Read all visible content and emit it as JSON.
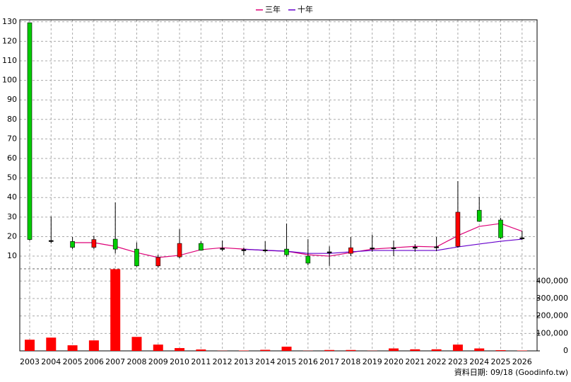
{
  "chart_data": {
    "type": "candlestick",
    "categories": [
      "2003",
      "2004",
      "2005",
      "2006",
      "2007",
      "2008",
      "2009",
      "2010",
      "2011",
      "2012",
      "2013",
      "2014",
      "2015",
      "2016",
      "2017",
      "2018",
      "2019",
      "2020",
      "2021",
      "2022",
      "2023",
      "2024",
      "2025",
      "2026"
    ],
    "open": [
      129.5,
      18,
      17.5,
      14.5,
      18.7,
      13.6,
      5,
      9.6,
      16.5,
      14,
      13.3,
      13.2,
      13.6,
      10,
      12.2,
      11.4,
      14.2,
      14.3,
      14.6,
      14.8,
      15,
      33.5,
      28.5,
      19.4
    ],
    "high": [
      129.5,
      30.3,
      19.8,
      20.5,
      37.5,
      17,
      10.7,
      23.8,
      17.6,
      18,
      14.4,
      17.6,
      26.7,
      18.7,
      15,
      19.8,
      21,
      18,
      16.2,
      19.8,
      48.4,
      40.4,
      29.6,
      23
    ],
    "low": [
      18,
      16.5,
      13.6,
      13.6,
      11.4,
      4.6,
      4.2,
      8.9,
      12.9,
      12.5,
      10.4,
      11.8,
      9.6,
      5.3,
      5,
      10,
      12.2,
      10,
      12.2,
      12.5,
      14.3,
      27.5,
      18.7,
      18.3
    ],
    "close": [
      18.5,
      18,
      14.5,
      18.5,
      13.6,
      5,
      9.3,
      16.5,
      13,
      14,
      13.3,
      13.2,
      10.7,
      6.4,
      12.2,
      14.3,
      14.2,
      14.3,
      14.6,
      14.8,
      32.5,
      27.8,
      19.4,
      19.4
    ],
    "up_color": "#ff0000",
    "down_color": "#00cc00",
    "flat_color": "#000000",
    "series": [
      {
        "name": "三年",
        "color": "#dd0077",
        "values": [
          null,
          null,
          16.9,
          16.9,
          15,
          11.8,
          9.3,
          10.4,
          13.3,
          14.3,
          13.6,
          12.9,
          12.5,
          10.7,
          10,
          11.8,
          13.6,
          14.3,
          15,
          14.7,
          20.5,
          25.2,
          26.7,
          22.7
        ]
      },
      {
        "name": "十年",
        "color": "#6600cc",
        "values": [
          null,
          null,
          null,
          null,
          null,
          null,
          null,
          null,
          null,
          null,
          13.5,
          13,
          12.5,
          11.4,
          11.4,
          12.2,
          12.9,
          12.9,
          12.9,
          12.9,
          14.7,
          16.2,
          17.6,
          18.7
        ]
      }
    ],
    "volume": {
      "color": "#ff0000",
      "values": [
        64000,
        76000,
        32000,
        60000,
        468000,
        80000,
        36000,
        16000,
        8000,
        1000,
        2000,
        6000,
        24000,
        1000,
        5000,
        5000,
        1000,
        14000,
        9000,
        9000,
        36000,
        14000,
        4000,
        2000
      ]
    },
    "ylim": [
      3.5,
      131
    ],
    "yticks": [
      10,
      20,
      30,
      40,
      50,
      60,
      70,
      80,
      90,
      100,
      110,
      120,
      130
    ],
    "y2lim": [
      0,
      470000
    ],
    "y2ticks": [
      {
        "value": 0,
        "label": "0"
      },
      {
        "value": 100000,
        "label": "100,000"
      },
      {
        "value": 200000,
        "label": "200,000"
      },
      {
        "value": 300000,
        "label": "300,000"
      },
      {
        "value": 400000,
        "label": "400,000"
      }
    ],
    "grid": true,
    "footer": "資料日期: 09/18 (Goodinfo.tw)"
  }
}
